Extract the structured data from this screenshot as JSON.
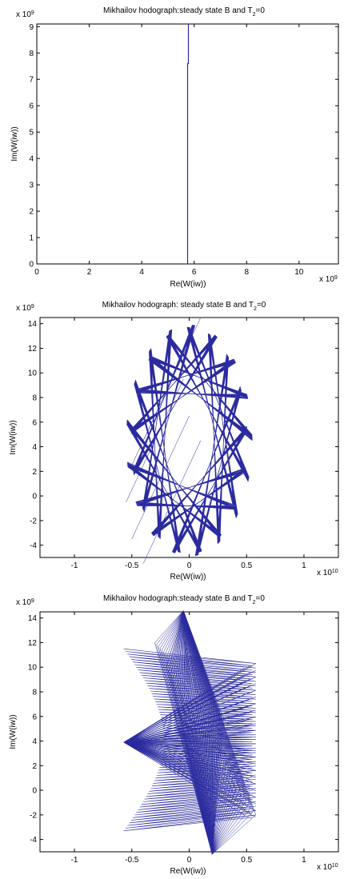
{
  "chart_data": [
    {
      "type": "line",
      "title_main": "Mikhailov hodograph:steady state B and T",
      "title_sub": "2",
      "title_end": "=0",
      "xlabel": "Re(W(iw))",
      "ylabel": "Im(W(iw))",
      "x_exponent_label": "x 10",
      "x_exponent_power": "9",
      "y_exponent_label": "x 10",
      "y_exponent_power": "9",
      "xlim": [
        0,
        11.5
      ],
      "ylim": [
        0,
        9.1
      ],
      "xticks": [
        0,
        2,
        4,
        6,
        8,
        10
      ],
      "xtick_labels": [
        "0",
        "2",
        "4",
        "6",
        "8",
        "10"
      ],
      "yticks": [
        0,
        1,
        2,
        3,
        4,
        5,
        6,
        7,
        8,
        9
      ],
      "ytick_labels": [
        "0",
        "1",
        "2",
        "3",
        "4",
        "5",
        "6",
        "7",
        "8",
        "9"
      ],
      "line_color": "#2b2b9f",
      "pattern": "vertical",
      "series": [
        {
          "values": {
            "x": [
              5.75,
              5.75,
              5.78,
              5.78,
              5.8
            ],
            "y": [
              0,
              7.6,
              7.6,
              9.1,
              9.1
            ]
          }
        }
      ]
    },
    {
      "type": "line",
      "title_main": "Mikhailov hodograph: steady state B and T",
      "title_sub": "2",
      "title_end": "=0",
      "xlabel": "Re(W(iw))",
      "ylabel": "Im(W(iw))",
      "x_exponent_label": "x 10",
      "x_exponent_power": "10",
      "y_exponent_label": "x 10",
      "y_exponent_power": "9",
      "xlim": [
        -1.3,
        1.3
      ],
      "ylim": [
        -5,
        14.5
      ],
      "xticks": [
        -1,
        -0.5,
        0,
        0.5,
        1
      ],
      "xtick_labels": [
        "-1",
        "-0.5",
        "0",
        "0.5",
        "1"
      ],
      "yticks": [
        -4,
        -2,
        0,
        2,
        4,
        6,
        8,
        10,
        12,
        14
      ],
      "ytick_labels": [
        "-4",
        "-2",
        "0",
        "2",
        "4",
        "6",
        "8",
        "10",
        "12",
        "14"
      ],
      "line_color": "#2b2b9f",
      "pattern": "oval",
      "params": {
        "cx": 0,
        "cy": 4.5,
        "rx": 0.55,
        "ry": 9.5,
        "steps": 120
      }
    },
    {
      "type": "line",
      "title_main": "Mikhailov hodograph:steady state B and T",
      "title_sub": "2",
      "title_end": "=0",
      "xlabel": "Re(W(iw))",
      "ylabel": "Im(W(iw))",
      "x_exponent_label": "x 10",
      "x_exponent_power": "10",
      "y_exponent_label": "x 10",
      "y_exponent_power": "9",
      "xlim": [
        -1.3,
        1.3
      ],
      "ylim": [
        -5,
        14.5
      ],
      "xticks": [
        -1,
        -0.5,
        0,
        0.5,
        1
      ],
      "xtick_labels": [
        "-1",
        "-0.5",
        "0",
        "0.5",
        "1"
      ],
      "yticks": [
        -4,
        -2,
        0,
        2,
        4,
        6,
        8,
        10,
        12,
        14
      ],
      "ytick_labels": [
        "-4",
        "-2",
        "0",
        "2",
        "4",
        "6",
        "8",
        "10",
        "12",
        "14"
      ],
      "line_color": "#2b2b9f",
      "pattern": "fan",
      "params": {
        "hub_left": [
          -0.57,
          3.9
        ],
        "upper_left": [
          -0.45,
          11.5
        ],
        "lower_left": [
          -0.45,
          -3.3
        ],
        "top": [
          -0.05,
          14.6
        ],
        "bottom": [
          0.2,
          -5.2
        ],
        "right_x": 0.58,
        "right_ymin": -2.2,
        "right_ymax": 10.3,
        "steps": 70
      }
    }
  ]
}
